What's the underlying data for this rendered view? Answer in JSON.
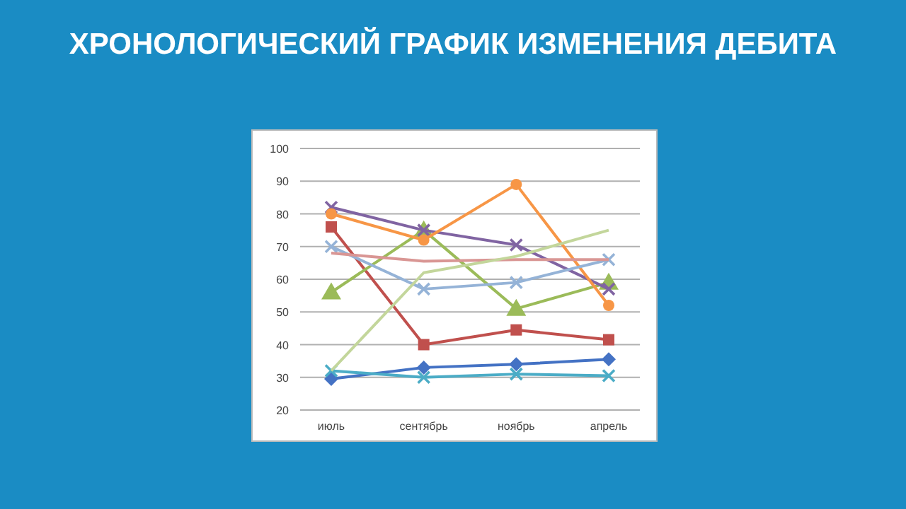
{
  "chart_data": {
    "type": "line",
    "title": "ХРОНОЛОГИЧЕСКИЙ ГРАФИК ИЗМЕНЕНИЯ ДЕБИТА",
    "categories": [
      "июль",
      "сентябрь",
      "ноябрь",
      "апрель"
    ],
    "series": [
      {
        "color": "#4472c4",
        "marker": "diamond",
        "values": [
          29.5,
          33,
          34,
          35.5
        ]
      },
      {
        "color": "#c0504d",
        "marker": "square",
        "values": [
          76,
          40,
          44.5,
          41.5
        ]
      },
      {
        "color": "#9bbb59",
        "marker": "triangle",
        "values": [
          56,
          75,
          51,
          59
        ]
      },
      {
        "color": "#8064a2",
        "marker": "cross",
        "values": [
          82,
          75,
          70.5,
          57
        ]
      },
      {
        "color": "#4bacc6",
        "marker": "cross",
        "values": [
          32,
          30,
          31,
          30.5
        ]
      },
      {
        "color": "#f79646",
        "marker": "circle",
        "values": [
          80,
          72,
          89,
          52
        ]
      },
      {
        "color": "#95b3d7",
        "marker": "cross",
        "values": [
          70,
          57,
          59,
          66
        ]
      },
      {
        "color": "#d99694",
        "marker": "none",
        "values": [
          68,
          65.5,
          66,
          66
        ]
      },
      {
        "color": "#c3d69b",
        "marker": "none",
        "values": [
          32,
          62,
          67,
          75
        ]
      }
    ],
    "ylim": [
      20,
      100
    ],
    "yticks": [
      20,
      30,
      40,
      50,
      60,
      70,
      80,
      90,
      100
    ],
    "grid": "y"
  }
}
